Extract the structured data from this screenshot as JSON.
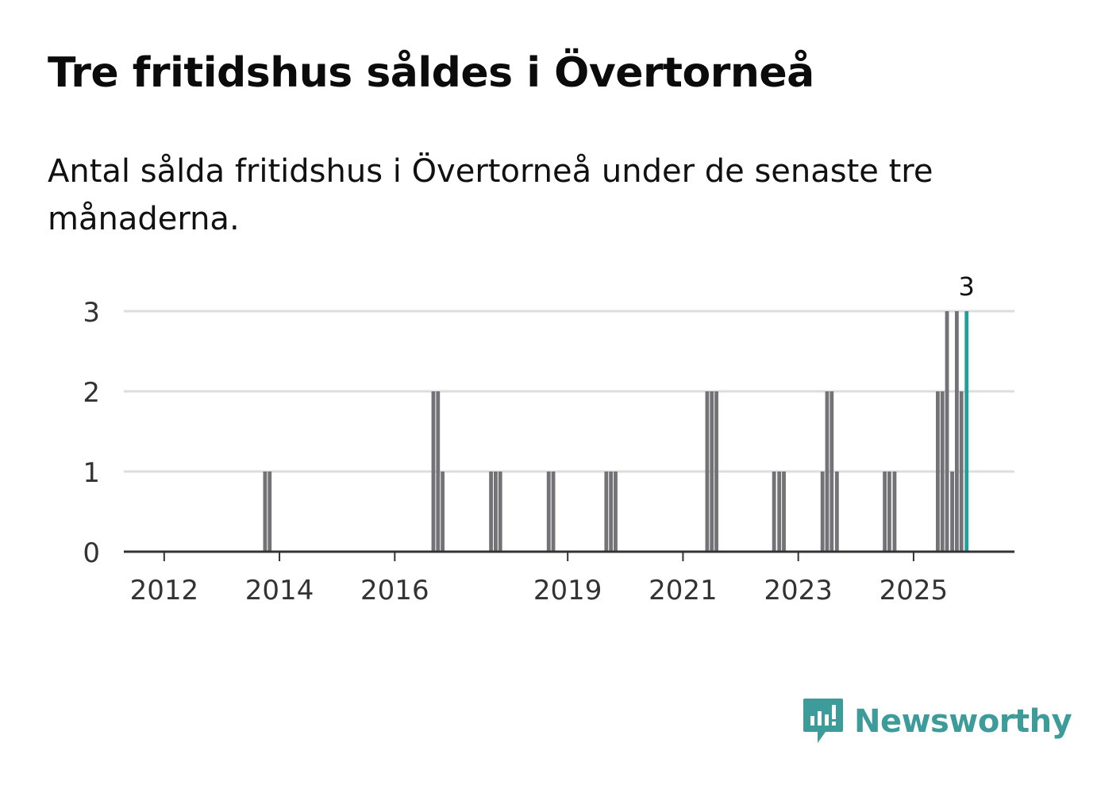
{
  "title": "Tre fritidshus såldes i Övertorneå",
  "subtitle": "Antal sålda fritidshus i Övertorneå under de senaste tre månaderna.",
  "brand": {
    "name": "Newsworthy",
    "color": "#3d9b99"
  },
  "colors": {
    "bar": "#737277",
    "highlight": "#21a09b",
    "grid": "#dddddd",
    "axis": "#333333"
  },
  "chart_data": {
    "type": "bar",
    "title": "Tre fritidshus såldes i Övertorneå",
    "xlabel": "",
    "ylabel": "",
    "ylim": [
      0,
      3
    ],
    "yticks": [
      0,
      1,
      2,
      3
    ],
    "xlim": [
      2011.3,
      2026.75
    ],
    "xticks": [
      {
        "label": "2012",
        "x": 2012.0
      },
      {
        "label": "2014",
        "x": 2014.0
      },
      {
        "label": "2016",
        "x": 2016.0
      },
      {
        "label": "2019",
        "x": 2019.0
      },
      {
        "label": "2021",
        "x": 2021.0
      },
      {
        "label": "2023",
        "x": 2023.0
      },
      {
        "label": "2025",
        "x": 2025.0
      }
    ],
    "bar_width_years": 0.083,
    "series": [
      {
        "name": "Sålda fritidshus",
        "points": [
          {
            "x": 2013.75,
            "y": 1
          },
          {
            "x": 2013.83,
            "y": 1
          },
          {
            "x": 2016.67,
            "y": 2
          },
          {
            "x": 2016.75,
            "y": 2
          },
          {
            "x": 2016.83,
            "y": 1
          },
          {
            "x": 2017.67,
            "y": 1
          },
          {
            "x": 2017.75,
            "y": 1
          },
          {
            "x": 2017.83,
            "y": 1
          },
          {
            "x": 2018.67,
            "y": 1
          },
          {
            "x": 2018.75,
            "y": 1
          },
          {
            "x": 2019.67,
            "y": 1
          },
          {
            "x": 2019.75,
            "y": 1
          },
          {
            "x": 2019.83,
            "y": 1
          },
          {
            "x": 2021.42,
            "y": 2
          },
          {
            "x": 2021.5,
            "y": 2
          },
          {
            "x": 2021.58,
            "y": 2
          },
          {
            "x": 2022.58,
            "y": 1
          },
          {
            "x": 2022.67,
            "y": 1
          },
          {
            "x": 2022.75,
            "y": 1
          },
          {
            "x": 2023.42,
            "y": 1
          },
          {
            "x": 2023.5,
            "y": 2
          },
          {
            "x": 2023.58,
            "y": 2
          },
          {
            "x": 2023.67,
            "y": 1
          },
          {
            "x": 2024.5,
            "y": 1
          },
          {
            "x": 2024.58,
            "y": 1
          },
          {
            "x": 2024.67,
            "y": 1
          },
          {
            "x": 2025.42,
            "y": 2
          },
          {
            "x": 2025.5,
            "y": 2
          },
          {
            "x": 2025.58,
            "y": 3
          },
          {
            "x": 2025.67,
            "y": 1
          },
          {
            "x": 2025.75,
            "y": 3
          },
          {
            "x": 2025.83,
            "y": 2
          },
          {
            "x": 2025.92,
            "y": 3,
            "highlight": true
          }
        ]
      }
    ],
    "annotations": [
      {
        "x": 2025.92,
        "y": 3,
        "text": "3"
      }
    ]
  }
}
